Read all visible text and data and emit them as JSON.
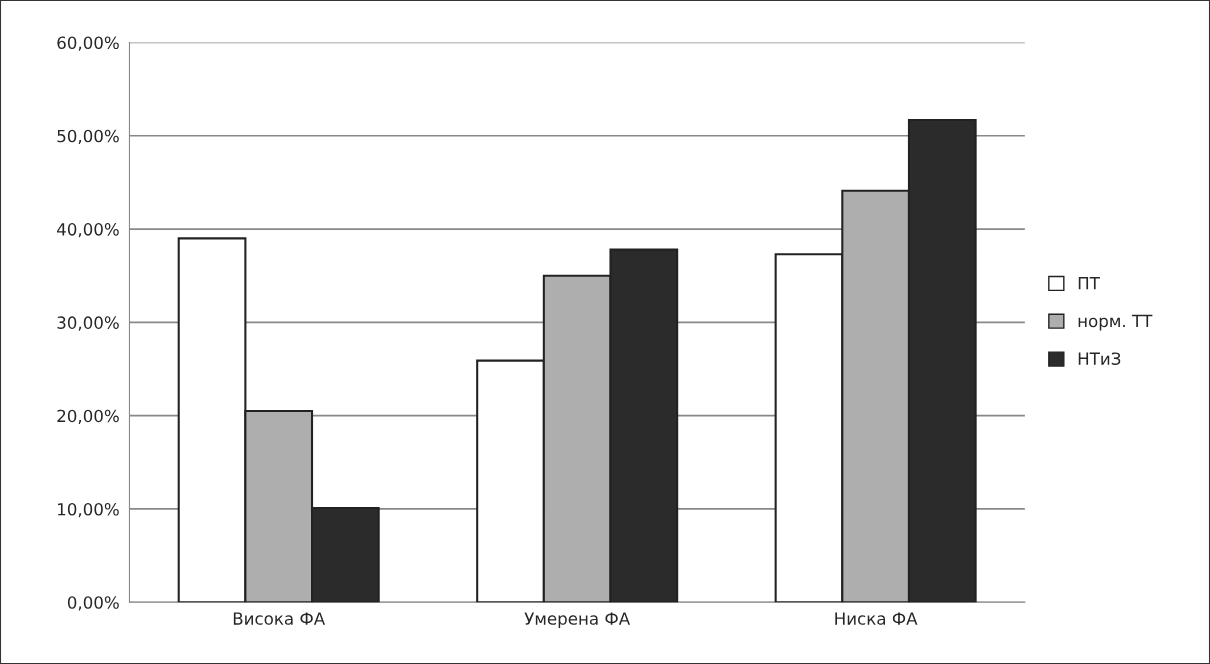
{
  "chart_data": {
    "type": "bar",
    "categories": [
      "Висока ФА",
      "Умерена ФА",
      "Ниска ФА"
    ],
    "series": [
      {
        "name": "ПТ",
        "color": "#ffffff",
        "values": [
          39.0,
          25.9,
          37.3
        ]
      },
      {
        "name": "норм. ТТ",
        "color": "#aeaeae",
        "values": [
          20.5,
          35.0,
          44.1
        ]
      },
      {
        "name": "НТиЗ",
        "color": "#2b2b2b",
        "values": [
          10.1,
          37.8,
          51.7
        ]
      }
    ],
    "ylim": [
      0,
      60
    ],
    "yticks": [
      {
        "value": 0,
        "label": "0,00%"
      },
      {
        "value": 10,
        "label": "10,00%"
      },
      {
        "value": 20,
        "label": "20,00%"
      },
      {
        "value": 30,
        "label": "30,00%"
      },
      {
        "value": 40,
        "label": "40,00%"
      },
      {
        "value": 50,
        "label": "50,00%"
      },
      {
        "value": 60,
        "label": "60,00%"
      }
    ],
    "grid": "y",
    "legend": "right"
  }
}
